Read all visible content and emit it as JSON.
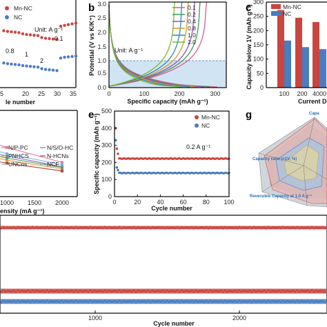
{
  "colors": {
    "mn_nc": "#c94540",
    "nc": "#4a7cc0",
    "nc_fill": "#bcd8ee",
    "dash": "#3a78b6"
  },
  "panels": {
    "a": {
      "legend": [
        "Mn-NC",
        "NC"
      ],
      "unit": "Unit: A g⁻¹",
      "rates": [
        "0.8",
        "1",
        "2",
        "0.1"
      ],
      "xticks": [
        "5",
        "20",
        "25",
        "30",
        "35"
      ],
      "xlabel": "le number"
    },
    "b": {
      "label": "b",
      "legend": [
        "0.1",
        "0.2",
        "0.4",
        "0.8",
        "1.0",
        "2.0"
      ],
      "unit": "Unit: A g⁻¹",
      "ylabel": "Potential (V vs K/K⁺)",
      "xlabel": "Specific capacity (mAh g⁻¹)",
      "yticks": [
        "0.0",
        "0.5",
        "1.0",
        "1.5",
        "2.0",
        "2.5",
        "3.0"
      ],
      "xticks": [
        "0",
        "100",
        "200",
        "300"
      ]
    },
    "c": {
      "label": "c",
      "legend": [
        "Mn-NC",
        "NC"
      ],
      "ylabel": "Capacity below 1V (mAh g⁻¹)",
      "xlabel": "Current De",
      "yticks": [
        "0",
        "50",
        "100",
        "150",
        "200",
        "250",
        "300"
      ],
      "xticks": [
        "100",
        "200",
        "4000"
      ]
    },
    "d": {
      "legend": [
        "N/P-PC",
        "N/S/O-HC",
        "PNHCS",
        "N-HCNs",
        "UNCns",
        "NCF"
      ],
      "xlabel": "ensity (mA g⁻¹)",
      "xticks": [
        "1000",
        "1500",
        "2000"
      ]
    },
    "e": {
      "label": "e",
      "legend": [
        "Mn-NC",
        "NC"
      ],
      "ylabel": "Specific capacity (mAh g⁻¹)",
      "xlabel": "Cycle number",
      "annotation": "0.2 A g⁻¹",
      "yticks": [
        "0",
        "100",
        "200",
        "300",
        "400",
        "500"
      ],
      "xticks": [
        "0",
        "20",
        "40",
        "60",
        "80",
        "100"
      ]
    },
    "g": {
      "label": "g",
      "axis_labels": [
        "Capa",
        "Capacity ratio (<1V, %)",
        "Reversible Capacity at 1.0 A g⁻¹"
      ]
    },
    "bottom": {
      "xlabel": "Cycle number",
      "xticks": [
        "1000",
        "2000"
      ]
    }
  },
  "chart_data": [
    {
      "type": "line",
      "panel": "a",
      "xlabel": "le number",
      "x_range": [
        15,
        35
      ],
      "series": [
        {
          "name": "Mn-NC",
          "x": [
            16,
            17,
            18,
            19,
            20,
            21,
            22,
            23,
            24,
            25,
            26,
            27,
            28,
            29,
            30,
            31,
            32,
            33,
            34,
            35
          ],
          "y": [
            200,
            198,
            197,
            196,
            195,
            192,
            190,
            189,
            188,
            187,
            182,
            180,
            179,
            178,
            177,
            212,
            214,
            216,
            218,
            220
          ]
        },
        {
          "name": "NC",
          "x": [
            16,
            17,
            18,
            19,
            20,
            21,
            22,
            23,
            24,
            25,
            26,
            27,
            28,
            29,
            30,
            31,
            32,
            33,
            34,
            35
          ],
          "y": [
            115,
            113,
            112,
            111,
            110,
            108,
            107,
            106,
            105,
            104,
            100,
            98,
            97,
            96,
            95,
            128,
            130,
            131,
            132,
            133
          ]
        }
      ],
      "annotations": [
        "0.8",
        "1",
        "2",
        "0.1"
      ]
    },
    {
      "type": "line",
      "panel": "b",
      "xlabel": "Specific capacity (mAh g⁻¹)",
      "ylabel": "Potential (V vs K/K⁺)",
      "xlim": [
        0,
        330
      ],
      "ylim": [
        0,
        3.0
      ],
      "series": [
        {
          "name": "0.1",
          "end_capacity": 305
        },
        {
          "name": "0.2",
          "end_capacity": 285
        },
        {
          "name": "0.4",
          "end_capacity": 268
        },
        {
          "name": "0.8",
          "end_capacity": 248
        },
        {
          "name": "1.0",
          "end_capacity": 228
        },
        {
          "name": "2.0",
          "end_capacity": 205
        }
      ],
      "reference_line_y": 1.0
    },
    {
      "type": "bar",
      "panel": "c",
      "ylabel": "Capacity below 1V (mAh g⁻¹)",
      "categories": [
        "100",
        "200",
        "4000"
      ],
      "ylim": [
        0,
        300
      ],
      "series": [
        {
          "name": "Mn-NC",
          "values": [
            272,
            245,
            230
          ]
        },
        {
          "name": "NC",
          "values": [
            165,
            142,
            135
          ]
        }
      ]
    },
    {
      "type": "line",
      "panel": "d",
      "xlabel": "ensity (mA g⁻¹)",
      "series": [
        {
          "name": "N/P-PC",
          "x": [
            500,
            1000,
            2000
          ],
          "y": [
            235,
            215,
            180
          ]
        },
        {
          "name": "N/S/O-HC",
          "x": [
            500,
            1000,
            2000
          ],
          "y": [
            210,
            195,
            170
          ]
        },
        {
          "name": "PNHCS",
          "x": [
            500,
            1000,
            2000
          ],
          "y": [
            200,
            185,
            165
          ]
        },
        {
          "name": "N-HCNs",
          "x": [
            500,
            1000,
            2000
          ],
          "y": [
            190,
            178,
            160
          ]
        },
        {
          "name": "UNCns",
          "x": [
            500,
            1000,
            2000
          ],
          "y": [
            220,
            200,
            175
          ]
        },
        {
          "name": "NCF",
          "x": [
            500,
            1000,
            2000
          ],
          "y": [
            205,
            190,
            168
          ]
        }
      ]
    },
    {
      "type": "scatter",
      "panel": "e",
      "xlabel": "Cycle number",
      "ylabel": "Specific capacity (mAh g⁻¹)",
      "xlim": [
        0,
        100
      ],
      "ylim": [
        0,
        500
      ],
      "series": [
        {
          "name": "Mn-NC",
          "initial": [
            400,
            280,
            250
          ],
          "plateau": 222
        },
        {
          "name": "NC",
          "initial": [
            330,
            170,
            155
          ],
          "plateau": 138
        }
      ]
    },
    {
      "type": "scatter",
      "panel": "bottom",
      "xlabel": "Cycle number",
      "series": [
        {
          "name": "Mn-NC (top band)",
          "level": "upper"
        },
        {
          "name": "Mn-NC",
          "level": "middle"
        },
        {
          "name": "NC",
          "level": "lower"
        }
      ]
    }
  ]
}
